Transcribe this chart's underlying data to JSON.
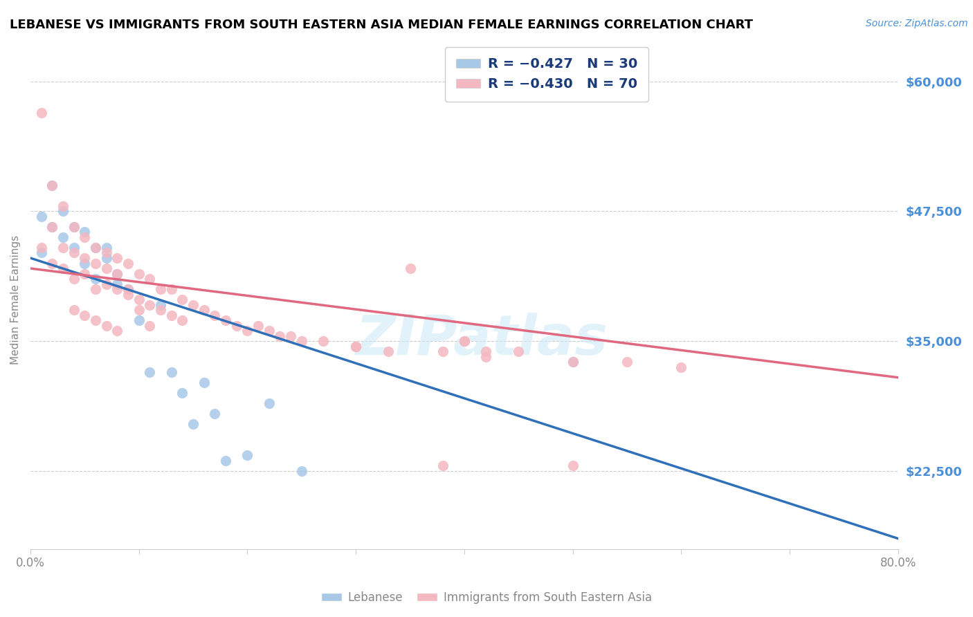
{
  "title": "LEBANESE VS IMMIGRANTS FROM SOUTH EASTERN ASIA MEDIAN FEMALE EARNINGS CORRELATION CHART",
  "source": "Source: ZipAtlas.com",
  "ylabel": "Median Female Earnings",
  "ytick_labels": [
    "$22,500",
    "$35,000",
    "$47,500",
    "$60,000"
  ],
  "ytick_values": [
    22500,
    35000,
    47500,
    60000
  ],
  "ymin": 15000,
  "ymax": 63000,
  "xmin": 0.0,
  "xmax": 0.8,
  "blue_color": "#a8c8e8",
  "pink_color": "#f4b8c0",
  "blue_line_color": "#3070b8",
  "pink_line_color": "#e06880",
  "watermark": "ZIPatlas",
  "blue_scatter_x": [
    0.01,
    0.02,
    0.02,
    0.03,
    0.03,
    0.04,
    0.04,
    0.05,
    0.05,
    0.06,
    0.06,
    0.07,
    0.07,
    0.08,
    0.08,
    0.09,
    0.1,
    0.11,
    0.12,
    0.13,
    0.14,
    0.15,
    0.16,
    0.17,
    0.18,
    0.2,
    0.22,
    0.25,
    0.5,
    0.01
  ],
  "blue_scatter_y": [
    47000,
    50000,
    46000,
    47500,
    45000,
    46000,
    44000,
    45500,
    42500,
    44000,
    41000,
    44000,
    43000,
    40500,
    41500,
    40000,
    37000,
    32000,
    38500,
    32000,
    30000,
    27000,
    31000,
    28000,
    23500,
    24000,
    29000,
    22500,
    33000,
    43500
  ],
  "pink_scatter_x": [
    0.01,
    0.01,
    0.02,
    0.02,
    0.03,
    0.03,
    0.04,
    0.04,
    0.05,
    0.05,
    0.06,
    0.06,
    0.07,
    0.07,
    0.08,
    0.08,
    0.09,
    0.09,
    0.1,
    0.1,
    0.11,
    0.11,
    0.12,
    0.12,
    0.13,
    0.13,
    0.14,
    0.14,
    0.15,
    0.16,
    0.17,
    0.18,
    0.19,
    0.2,
    0.21,
    0.22,
    0.23,
    0.24,
    0.25,
    0.27,
    0.3,
    0.33,
    0.35,
    0.38,
    0.4,
    0.42,
    0.45,
    0.5,
    0.55,
    0.6,
    0.02,
    0.03,
    0.04,
    0.05,
    0.06,
    0.07,
    0.08,
    0.09,
    0.1,
    0.11,
    0.04,
    0.05,
    0.06,
    0.07,
    0.08,
    0.3,
    0.4,
    0.42,
    0.38,
    0.5
  ],
  "pink_scatter_y": [
    57000,
    44000,
    50000,
    42500,
    48000,
    42000,
    46000,
    41000,
    45000,
    41500,
    44000,
    40000,
    43500,
    40500,
    43000,
    40000,
    42500,
    39500,
    41500,
    39000,
    41000,
    38500,
    40000,
    38000,
    40000,
    37500,
    39000,
    37000,
    38500,
    38000,
    37500,
    37000,
    36500,
    36000,
    36500,
    36000,
    35500,
    35500,
    35000,
    35000,
    34500,
    34000,
    42000,
    34000,
    35000,
    33500,
    34000,
    33000,
    33000,
    32500,
    46000,
    44000,
    43500,
    43000,
    42500,
    42000,
    41500,
    40000,
    38000,
    36500,
    38000,
    37500,
    37000,
    36500,
    36000,
    34500,
    35000,
    34000,
    23000,
    23000
  ],
  "blue_line_x": [
    0.0,
    0.8
  ],
  "blue_line_y": [
    43000,
    16000
  ],
  "pink_line_x": [
    0.0,
    0.8
  ],
  "pink_line_y": [
    42000,
    31500
  ],
  "xtick_positions": [
    0.0,
    0.1,
    0.2,
    0.3,
    0.4,
    0.5,
    0.6,
    0.7,
    0.8
  ],
  "xtick_labels": [
    "0.0%",
    "",
    "",
    "",
    "",
    "",
    "",
    "",
    "80.0%"
  ]
}
